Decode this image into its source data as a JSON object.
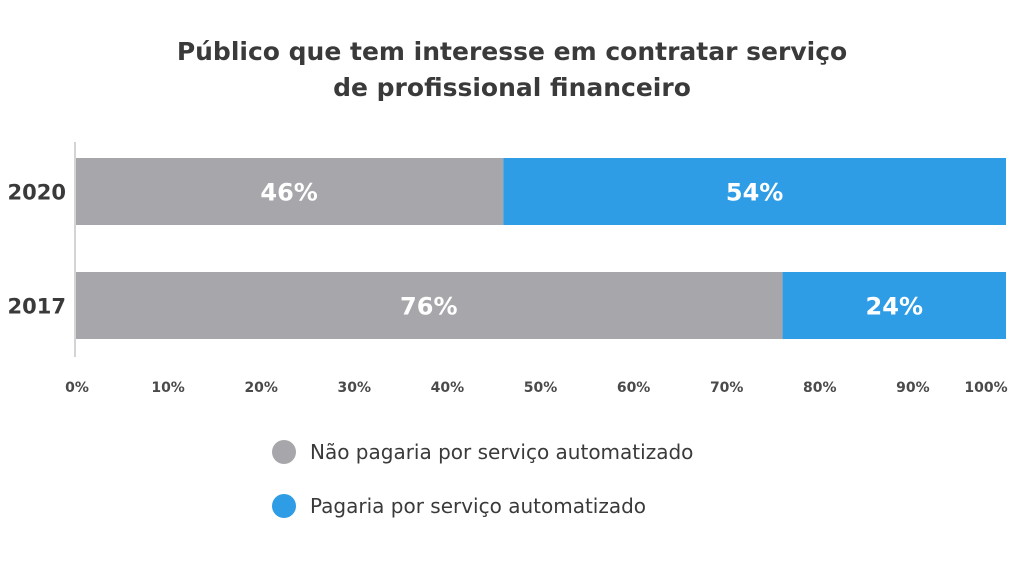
{
  "chart_data": {
    "type": "bar",
    "orientation": "horizontal",
    "stacked": true,
    "title": "Público que tem interesse em contratar serviço de profissional financeiro",
    "title_lines": [
      "Público que tem interesse em contratar serviço",
      "de profissional financeiro"
    ],
    "categories": [
      "2020",
      "2017"
    ],
    "series": [
      {
        "name": "Não pagaria por serviço automatizado",
        "color": "#a7a6ab",
        "values": [
          46,
          76
        ],
        "labels": [
          "46%",
          "76%"
        ]
      },
      {
        "name": "Pagaria por serviço automatizado",
        "color": "#2e9de6",
        "values": [
          54,
          24
        ],
        "labels": [
          "54%",
          "24%"
        ]
      }
    ],
    "xlim": [
      0,
      100
    ],
    "x_ticks": [
      0,
      10,
      20,
      30,
      40,
      50,
      60,
      70,
      80,
      90,
      100
    ],
    "x_tick_labels": [
      "0%",
      "10%",
      "20%",
      "30%",
      "40%",
      "50%",
      "60%",
      "70%",
      "80%",
      "90%",
      "100%"
    ],
    "grid": false,
    "legend_position": "bottom"
  }
}
